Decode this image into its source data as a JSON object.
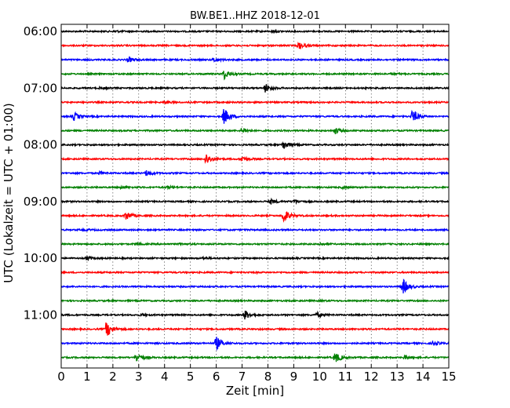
{
  "chart_data": {
    "type": "line",
    "title": "BW.BE1..HHZ 2018-12-01",
    "xlabel": "Zeit  [min]",
    "ylabel": "UTC (Lokalzeit = UTC + 01:00)",
    "xlim": [
      0,
      15
    ],
    "x_ticks": [
      "0",
      "1",
      "2",
      "3",
      "4",
      "5",
      "6",
      "7",
      "8",
      "9",
      "10",
      "11",
      "12",
      "13",
      "14",
      "15"
    ],
    "y_ticks": [
      "06:00",
      "07:00",
      "08:00",
      "09:00",
      "10:00",
      "11:00"
    ],
    "grid": "vertical dotted",
    "trace_colors": [
      "#000000",
      "#ff0000",
      "#0000ff",
      "#008000"
    ],
    "traces": [
      {
        "start": "06:00",
        "color": "#000000",
        "events": [
          {
            "t": 8.2,
            "amp": 0.12
          },
          {
            "t": 2.1,
            "amp": 0.08
          }
        ]
      },
      {
        "start": "06:15",
        "color": "#ff0000",
        "events": [
          {
            "t": 9.2,
            "amp": 0.45
          }
        ]
      },
      {
        "start": "06:30",
        "color": "#0000ff",
        "events": [
          {
            "t": 2.6,
            "amp": 0.3
          },
          {
            "t": 5.9,
            "amp": 0.25
          }
        ]
      },
      {
        "start": "06:45",
        "color": "#008000",
        "events": [
          {
            "t": 6.3,
            "amp": 0.6
          },
          {
            "t": 12.8,
            "amp": 0.1
          }
        ]
      },
      {
        "start": "07:00",
        "color": "#000000",
        "events": [
          {
            "t": 7.9,
            "amp": 0.5
          },
          {
            "t": 1.5,
            "amp": 0.1
          }
        ]
      },
      {
        "start": "07:15",
        "color": "#ff0000",
        "events": [
          {
            "t": 4.0,
            "amp": 0.15
          }
        ]
      },
      {
        "start": "07:30",
        "color": "#0000ff",
        "events": [
          {
            "t": 0.5,
            "amp": 0.45
          },
          {
            "t": 6.3,
            "amp": 1.0
          },
          {
            "t": 13.6,
            "amp": 0.8
          }
        ]
      },
      {
        "start": "07:45",
        "color": "#008000",
        "events": [
          {
            "t": 7.0,
            "amp": 0.35
          },
          {
            "t": 10.6,
            "amp": 0.35
          }
        ]
      },
      {
        "start": "08:00",
        "color": "#000000",
        "events": [
          {
            "t": 8.6,
            "amp": 0.55
          }
        ]
      },
      {
        "start": "08:15",
        "color": "#ff0000",
        "events": [
          {
            "t": 5.6,
            "amp": 0.7
          },
          {
            "t": 7.0,
            "amp": 0.3
          }
        ]
      },
      {
        "start": "08:30",
        "color": "#0000ff",
        "events": [
          {
            "t": 1.5,
            "amp": 0.15
          },
          {
            "t": 3.3,
            "amp": 0.35
          }
        ]
      },
      {
        "start": "08:45",
        "color": "#008000",
        "events": [
          {
            "t": 2.3,
            "amp": 0.15
          },
          {
            "t": 4.1,
            "amp": 0.15
          },
          {
            "t": 10.9,
            "amp": 0.1
          }
        ]
      },
      {
        "start": "09:00",
        "color": "#000000",
        "events": [
          {
            "t": 8.1,
            "amp": 0.3
          },
          {
            "t": 9.0,
            "amp": 0.25
          }
        ]
      },
      {
        "start": "09:15",
        "color": "#ff0000",
        "events": [
          {
            "t": 2.5,
            "amp": 0.5
          },
          {
            "t": 8.6,
            "amp": 0.85
          }
        ]
      },
      {
        "start": "09:30",
        "color": "#0000ff",
        "events": [
          {
            "t": 0.9,
            "amp": 0.08
          }
        ]
      },
      {
        "start": "09:45",
        "color": "#008000",
        "events": [
          {
            "t": 2.9,
            "amp": 0.12
          },
          {
            "t": 4.6,
            "amp": 0.1
          },
          {
            "t": 10.0,
            "amp": 0.1
          }
        ]
      },
      {
        "start": "10:00",
        "color": "#000000",
        "events": [
          {
            "t": 1.0,
            "amp": 0.2
          },
          {
            "t": 5.5,
            "amp": 0.1
          }
        ]
      },
      {
        "start": "10:15",
        "color": "#ff0000",
        "events": [
          {
            "t": 7.5,
            "amp": 0.05
          }
        ]
      },
      {
        "start": "10:30",
        "color": "#0000ff",
        "events": [
          {
            "t": 13.2,
            "amp": 1.0
          }
        ]
      },
      {
        "start": "10:45",
        "color": "#008000",
        "events": [
          {
            "t": 10.0,
            "amp": 0.05
          }
        ]
      },
      {
        "start": "11:00",
        "color": "#000000",
        "events": [
          {
            "t": 7.1,
            "amp": 0.55
          },
          {
            "t": 9.9,
            "amp": 0.3
          },
          {
            "t": 3.1,
            "amp": 0.12
          }
        ]
      },
      {
        "start": "11:15",
        "color": "#ff0000",
        "events": [
          {
            "t": 1.75,
            "amp": 0.95
          }
        ]
      },
      {
        "start": "11:30",
        "color": "#0000ff",
        "events": [
          {
            "t": 6.0,
            "amp": 0.8
          },
          {
            "t": 14.4,
            "amp": 0.25
          }
        ]
      },
      {
        "start": "11:45",
        "color": "#008000",
        "events": [
          {
            "t": 2.9,
            "amp": 0.55
          },
          {
            "t": 10.6,
            "amp": 0.65
          },
          {
            "t": 13.3,
            "amp": 0.2
          }
        ]
      }
    ]
  }
}
